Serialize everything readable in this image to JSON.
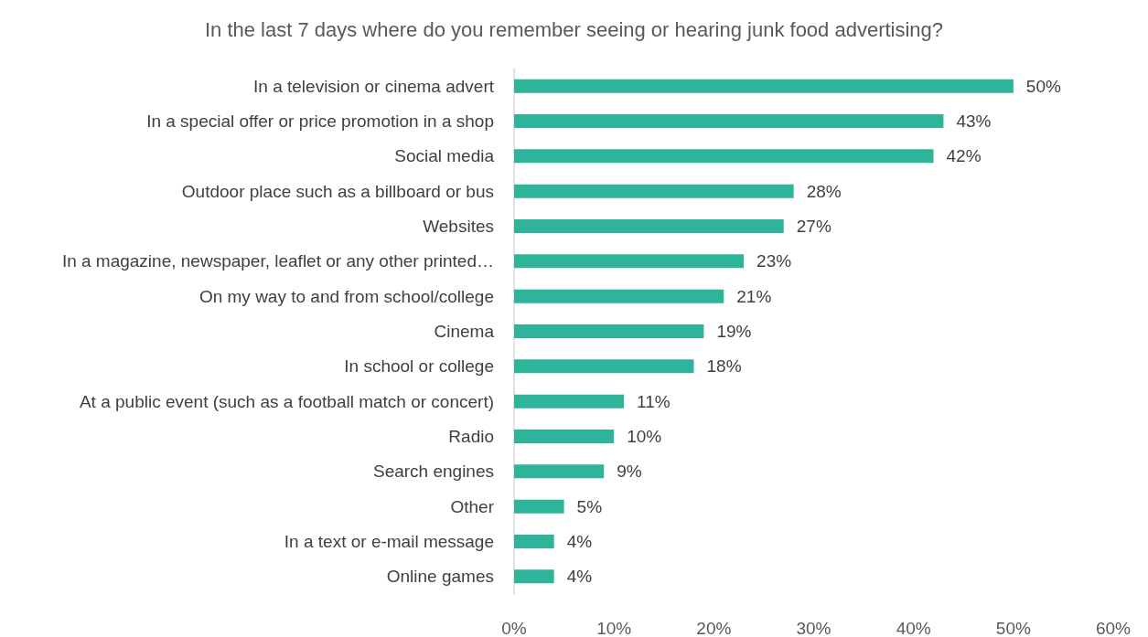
{
  "chart_data": {
    "type": "bar",
    "orientation": "horizontal",
    "title": "In the last 7 days where do you remember seeing or hearing junk food advertising?",
    "categories": [
      "In a television or cinema advert",
      "In a special offer or price promotion in a shop",
      "Social media",
      "Outdoor place such as a billboard or bus",
      "Websites",
      "In a magazine, newspaper, leaflet or any other printed…",
      "On my way to and from school/college",
      "Cinema",
      "In school or college",
      "At a public event (such as a football match or concert)",
      "Radio",
      "Search engines",
      "Other",
      "In a text or e-mail message",
      "Online games"
    ],
    "values": [
      50,
      43,
      42,
      28,
      27,
      23,
      21,
      19,
      18,
      11,
      10,
      9,
      5,
      4,
      4
    ],
    "value_labels": [
      "50%",
      "43%",
      "42%",
      "28%",
      "27%",
      "23%",
      "21%",
      "19%",
      "18%",
      "11%",
      "10%",
      "9%",
      "5%",
      "4%",
      "4%"
    ],
    "color": "#2eb49a",
    "xlim": [
      0,
      60
    ],
    "xticks": [
      {
        "value": 0,
        "label": "0%"
      },
      {
        "value": 10,
        "label": "10%"
      },
      {
        "value": 20,
        "label": "20%"
      },
      {
        "value": 30,
        "label": "30%"
      },
      {
        "value": 40,
        "label": "40%"
      },
      {
        "value": 50,
        "label": "50%"
      },
      {
        "value": 60,
        "label": "60%"
      }
    ],
    "grid": false
  }
}
